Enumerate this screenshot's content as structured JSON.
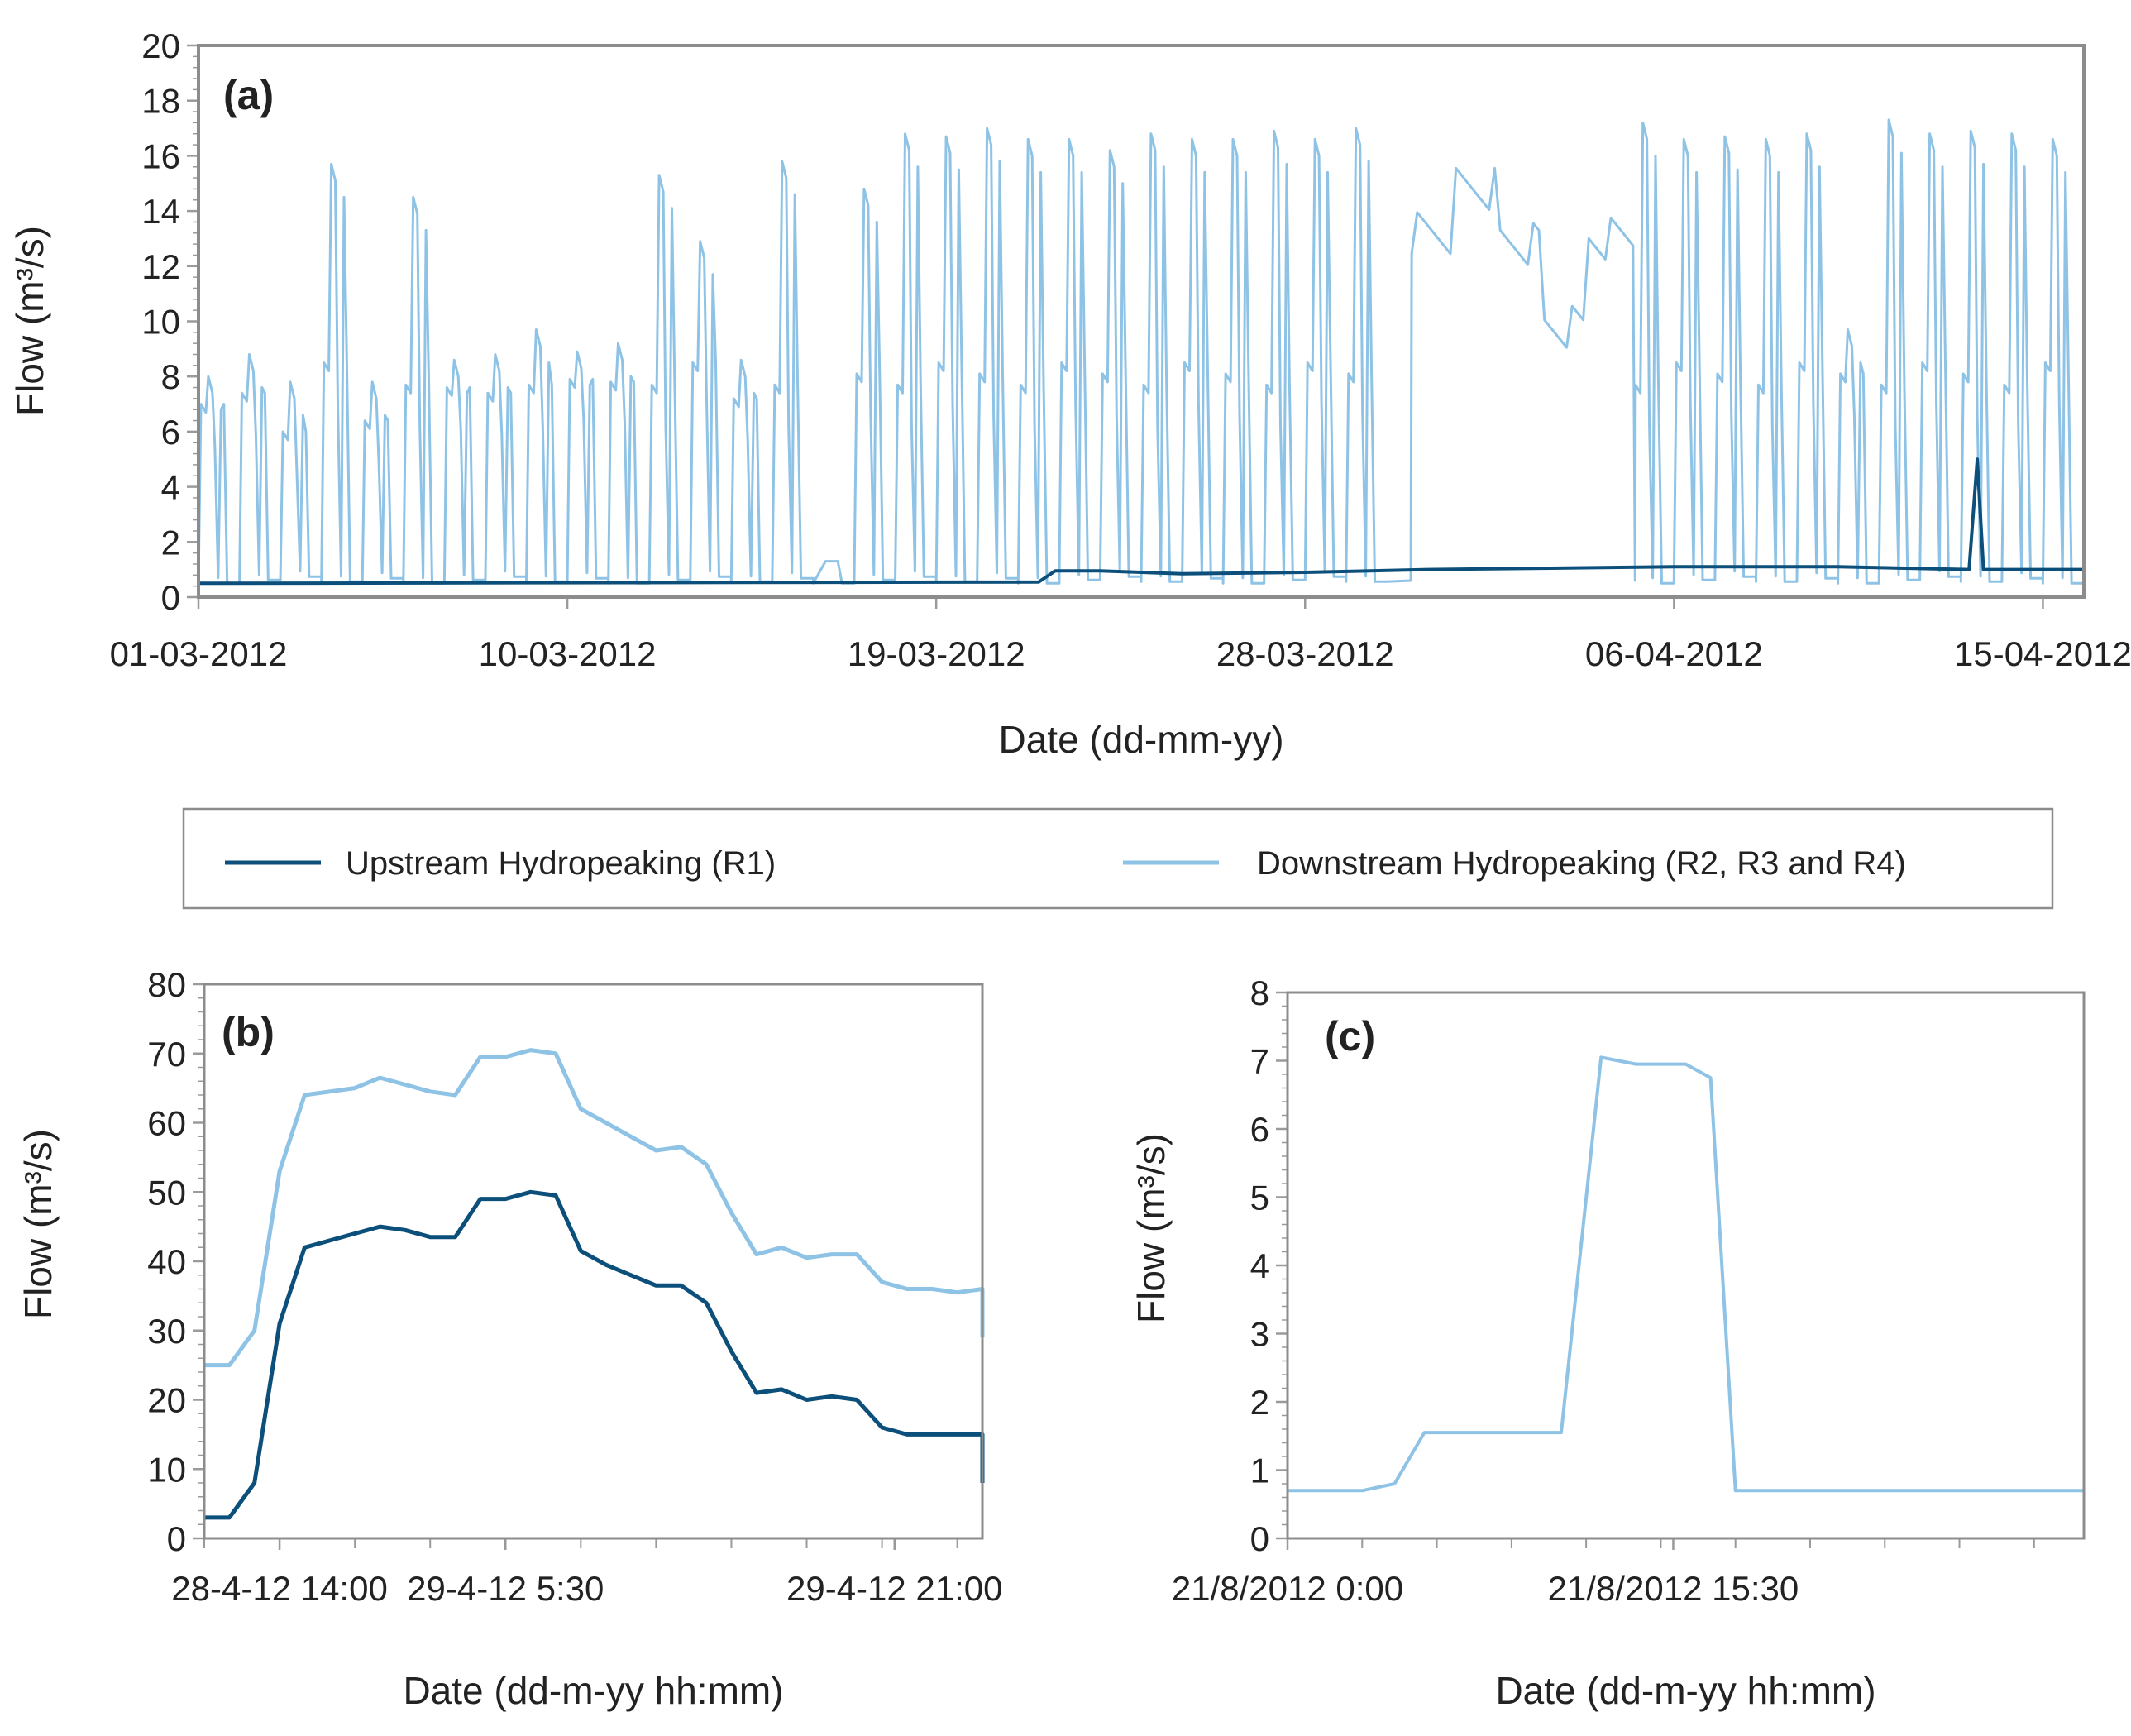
{
  "colors": {
    "upstream": "#0b4f7a",
    "downstream": "#8ec3e6",
    "frame": "#8c8c8c",
    "tick": "#9a9a9a"
  },
  "legend": [
    {
      "label": "Upstream Hydropeaking (R1)",
      "color": "#0b4f7a"
    },
    {
      "label": "Downstream Hydropeaking (R2, R3 and R4)",
      "color": "#8ec3e6"
    }
  ],
  "chart_data": [
    {
      "id": "a",
      "type": "line",
      "panel_label": "(a)",
      "xlabel": "Date (dd-mm-yy)",
      "ylabel": "Flow (m³/s)",
      "xlim": [
        0,
        46
      ],
      "ylim": [
        0,
        20
      ],
      "yticks": [
        0,
        2,
        4,
        6,
        8,
        10,
        12,
        14,
        16,
        18,
        20
      ],
      "xticks": [
        {
          "x": 0,
          "label": "01-03-2012"
        },
        {
          "x": 9,
          "label": "10-03-2012"
        },
        {
          "x": 18,
          "label": "19-03-2012"
        },
        {
          "x": 27,
          "label": "28-03-2012"
        },
        {
          "x": 36,
          "label": "06-04-2012"
        },
        {
          "x": 45,
          "label": "15-04-2012"
        }
      ],
      "x_unit": "days since 01-03-2012",
      "series": [
        {
          "name": "Downstream Hydropeaking (R2, R3 and R4)",
          "color": "#8ec3e6",
          "daily_peaks": [
            8.0,
            8.8,
            7.8,
            15.7,
            7.8,
            14.5,
            8.6,
            8.8,
            9.7,
            8.9,
            9.2,
            15.3,
            12.9,
            8.6,
            15.8,
            1.3,
            14.8,
            16.8,
            16.7,
            17.0,
            16.6,
            16.6,
            16.2,
            16.8,
            16.6,
            16.6,
            16.9,
            16.6,
            17.0,
            17.1,
            17.2,
            17.4,
            14.9,
            15.0,
            17.4,
            17.2,
            16.6,
            16.7,
            16.6,
            16.8,
            9.7,
            17.3,
            16.8,
            16.9,
            16.8,
            16.6
          ],
          "baseline": 0.5,
          "shoulder": 8.5,
          "plateau_segment": {
            "start": 29.6,
            "end": 35.0,
            "levels": [
              13.2,
              14.8,
              12.8,
              9.8,
              13.0
            ]
          }
        },
        {
          "name": "Upstream Hydropeaking (R1)",
          "color": "#0b4f7a",
          "x": [
            0,
            20.5,
            20.9,
            22,
            24,
            27,
            30,
            33,
            36,
            40,
            43.2,
            43.4,
            43.55,
            43.7,
            46
          ],
          "y": [
            0.5,
            0.55,
            0.95,
            0.95,
            0.85,
            0.9,
            1.0,
            1.05,
            1.1,
            1.1,
            1.0,
            5.0,
            1.0,
            1.0,
            1.0
          ]
        }
      ]
    },
    {
      "id": "b",
      "type": "line",
      "panel_label": "(b)",
      "xlabel": "Date (dd-m-yy hh:mm)",
      "ylabel": "Flow (m³/s)",
      "xlim": [
        0,
        31
      ],
      "ylim": [
        0,
        80
      ],
      "yticks": [
        0,
        10,
        20,
        30,
        40,
        50,
        60,
        70,
        80
      ],
      "xticks": [
        {
          "x": 3,
          "label": "28-4-12 14:00"
        },
        {
          "x": 12,
          "label": "29-4-12 5:30"
        },
        {
          "x": 27.5,
          "label": "29-4-12 21:00"
        }
      ],
      "minor_xticks": [
        0,
        3,
        6,
        9,
        12,
        15,
        18,
        21,
        24,
        27,
        30
      ],
      "x": [
        0,
        1,
        2,
        3,
        4,
        5,
        6,
        7,
        8,
        9,
        10,
        11,
        12,
        13,
        14,
        15,
        16,
        17,
        18,
        19,
        20,
        21,
        22,
        23,
        24,
        25,
        26,
        27,
        28,
        29,
        30,
        31
      ],
      "series": [
        {
          "name": "Downstream Hydropeaking (R2, R3 and R4)",
          "color": "#8ec3e6",
          "values": [
            25,
            25,
            30,
            53,
            64,
            64.5,
            65,
            66.5,
            65.5,
            64.5,
            64,
            69.5,
            69.5,
            70.5,
            70,
            62,
            60,
            58,
            56,
            56.5,
            54,
            47,
            41,
            42,
            40.5,
            41,
            41,
            37,
            36,
            36,
            35.5,
            36
          ]
        },
        {
          "name": "Upstream Hydropeaking (R1)",
          "color": "#0b4f7a",
          "values": [
            3,
            3,
            8,
            31,
            42,
            43,
            44,
            45,
            44.5,
            43.5,
            43.5,
            49,
            49,
            50,
            49.5,
            41.5,
            39.5,
            38,
            36.5,
            36.5,
            34,
            27,
            21,
            21.5,
            20,
            20.5,
            20,
            16,
            15,
            15,
            15,
            15
          ]
        }
      ],
      "series_tail": {
        "x": 31.0,
        "downstream": 29,
        "upstream": 8
      }
    },
    {
      "id": "c",
      "type": "line",
      "panel_label": "(c)",
      "xlabel": "Date (dd-m-yy hh:mm)",
      "ylabel": "Flow (m³/s)",
      "xlim": [
        0,
        32
      ],
      "ylim": [
        0,
        8
      ],
      "yticks": [
        0,
        1,
        2,
        3,
        4,
        5,
        6,
        7,
        8
      ],
      "xticks": [
        {
          "x": 0,
          "label": "21/8/2012 0:00"
        },
        {
          "x": 15.5,
          "label": "21/8/2012 15:30"
        }
      ],
      "minor_xticks": [
        0,
        3,
        6,
        9,
        12,
        15,
        18,
        21,
        24,
        27,
        30
      ],
      "series": [
        {
          "name": "Downstream Hydropeaking (R2, R3 and R4)",
          "color": "#8ec3e6",
          "x": [
            0,
            3,
            4.3,
            5.5,
            7,
            11,
            12.6,
            14,
            16,
            17,
            18,
            32
          ],
          "y": [
            0.7,
            0.7,
            0.8,
            1.55,
            1.55,
            1.55,
            7.05,
            6.95,
            6.95,
            6.75,
            0.7,
            0.7
          ]
        }
      ]
    }
  ]
}
